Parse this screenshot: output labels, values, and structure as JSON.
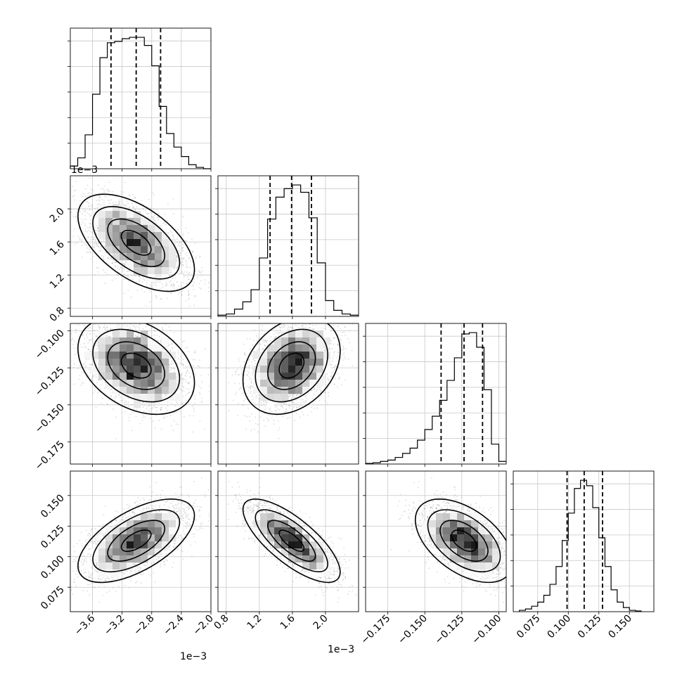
{
  "chart_data": {
    "type": "scatter",
    "title": "",
    "subtitle": "",
    "layout": "corner-plot",
    "grid": true,
    "legend": "none",
    "quantile_line_style": "dashed",
    "colors": {
      "line": "#000000",
      "grid": "#c8c8c8",
      "points": "#9a9a9a",
      "background": "#ffffff"
    },
    "parameters": [
      {
        "range": [
          -0.0039,
          -0.002
        ],
        "ticks": [
          -0.0036,
          -0.0032,
          -0.0028,
          -0.0024,
          -0.002
        ],
        "tick_labels": [
          "−3.6",
          "−3.2",
          "−2.8",
          "−2.4",
          "−2.0"
        ],
        "offset_text": "1e−3",
        "quantiles": [
          -0.00335,
          -0.00301,
          -0.00268
        ],
        "histogram": {
          "bin_edges": [
            -0.0039,
            -0.0038,
            -0.0037,
            -0.0036,
            -0.0035,
            -0.0034,
            -0.0033,
            -0.0032,
            -0.0031,
            -0.003,
            -0.0029,
            -0.0028,
            -0.0027,
            -0.0026,
            -0.0025,
            -0.0024,
            -0.0023,
            -0.0022,
            -0.0021,
            -0.002
          ],
          "counts": [
            2,
            8,
            25,
            55,
            82,
            93,
            94,
            96,
            97,
            97,
            91,
            76,
            46,
            26,
            16,
            9,
            3,
            1,
            0
          ]
        }
      },
      {
        "range": [
          0.0007,
          0.0024
        ],
        "ticks": [
          0.0008,
          0.0012,
          0.0016,
          0.002
        ],
        "tick_labels": [
          "0.8",
          "1.2",
          "1.6",
          "2.0"
        ],
        "offset_text": "1e−3",
        "quantiles": [
          0.00133,
          0.00159,
          0.00183
        ],
        "histogram": {
          "bin_edges": [
            0.0007,
            0.0008,
            0.0009,
            0.001,
            0.0011,
            0.0012,
            0.0013,
            0.0014,
            0.0015,
            0.0016,
            0.0017,
            0.0018,
            0.0019,
            0.002,
            0.0021,
            0.0022,
            0.0023,
            0.0024
          ],
          "counts": [
            1,
            2,
            6,
            12,
            22,
            48,
            80,
            98,
            105,
            108,
            102,
            81,
            44,
            13,
            5,
            2,
            1
          ]
        }
      },
      {
        "range": [
          -0.19,
          -0.095
        ],
        "ticks": [
          -0.175,
          -0.15,
          -0.125,
          -0.1
        ],
        "tick_labels": [
          "−0.175",
          "−0.150",
          "−0.125",
          "−0.100"
        ],
        "offset_text": "",
        "quantiles": [
          -0.139,
          -0.1235,
          -0.111
        ],
        "histogram": {
          "bin_edges": [
            -0.19,
            -0.185,
            -0.18,
            -0.175,
            -0.17,
            -0.165,
            -0.16,
            -0.155,
            -0.15,
            -0.145,
            -0.14,
            -0.135,
            -0.13,
            -0.125,
            -0.12,
            -0.115,
            -0.11,
            -0.105,
            -0.1,
            -0.095
          ],
          "counts": [
            0.5,
            1,
            2,
            3,
            5,
            8,
            12,
            18,
            26,
            36,
            48,
            63,
            80,
            98,
            99,
            88,
            56,
            15,
            2
          ]
        }
      },
      {
        "range": [
          0.055,
          0.17
        ],
        "ticks": [
          0.075,
          0.1,
          0.125,
          0.15
        ],
        "tick_labels": [
          "0.075",
          "0.100",
          "0.125",
          "0.150"
        ],
        "offset_text": "",
        "quantiles": [
          0.099,
          0.113,
          0.128
        ],
        "histogram": {
          "bin_edges": [
            0.06,
            0.065,
            0.07,
            0.075,
            0.08,
            0.085,
            0.09,
            0.095,
            0.1,
            0.105,
            0.11,
            0.115,
            0.12,
            0.125,
            0.13,
            0.135,
            0.14,
            0.145,
            0.15,
            0.155,
            0.16
          ],
          "counts": [
            1,
            2,
            4,
            7,
            12,
            20,
            33,
            52,
            72,
            90,
            96,
            92,
            76,
            54,
            33,
            16,
            7,
            3,
            1,
            0.5
          ]
        }
      }
    ],
    "correlations": {
      "1-0": -0.55,
      "2-0": -0.35,
      "2-1": 0.3,
      "3-0": 0.6,
      "3-1": -0.75,
      "3-2": -0.5
    }
  }
}
